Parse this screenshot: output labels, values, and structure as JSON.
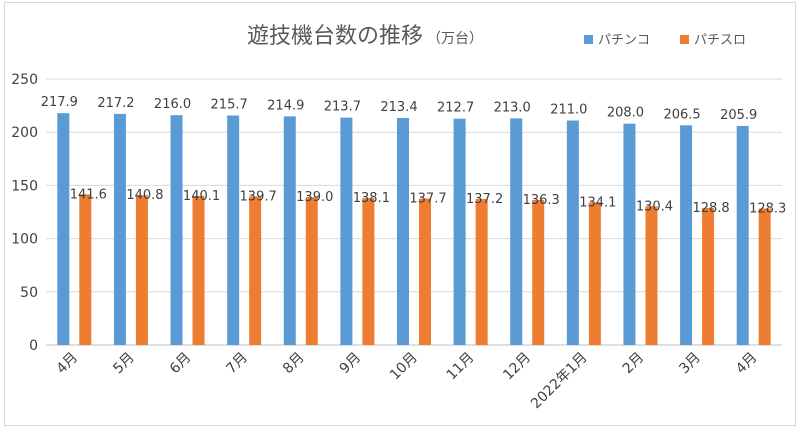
{
  "chart_data": {
    "type": "bar",
    "title": "遊技機台数の推移",
    "unit": "（万台）",
    "categories": [
      "4月",
      "5月",
      "6月",
      "7月",
      "8月",
      "9月",
      "10月",
      "11月",
      "12月",
      "2022年1月",
      "2月",
      "3月",
      "4月"
    ],
    "series": [
      {
        "name": "パチンコ",
        "color": "#5b9bd5",
        "values": [
          217.9,
          217.2,
          216.0,
          215.7,
          214.9,
          213.7,
          213.4,
          212.7,
          213.0,
          211.0,
          208.0,
          206.5,
          205.9
        ]
      },
      {
        "name": "パチスロ",
        "color": "#ed7d31",
        "values": [
          141.6,
          140.8,
          140.1,
          139.7,
          139.0,
          138.1,
          137.7,
          137.2,
          136.3,
          134.1,
          130.4,
          128.8,
          128.3
        ]
      }
    ],
    "ylim": [
      0,
      250
    ],
    "yticks": [
      0,
      50,
      100,
      150,
      200,
      250
    ],
    "grid": true,
    "legend_position": "top-right",
    "xlabel": "",
    "ylabel": ""
  }
}
